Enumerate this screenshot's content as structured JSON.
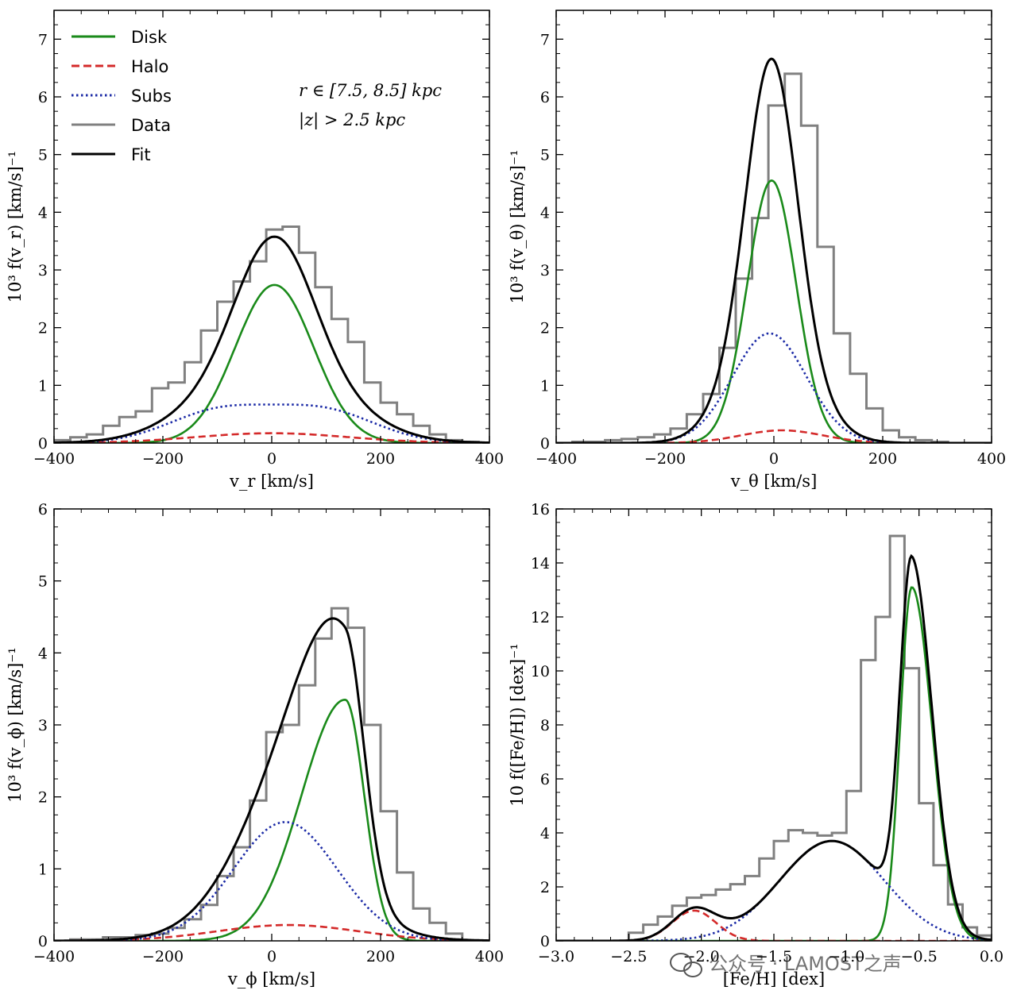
{
  "colors": {
    "disk": "#1a8a1a",
    "halo": "#d42a2a",
    "subs": "#1b2aa6",
    "data": "#808080",
    "fit": "#000000"
  },
  "legend": {
    "disk": "Disk",
    "halo": "Halo",
    "subs": "Subs",
    "data": "Data",
    "fit": "Fit"
  },
  "annotation": {
    "line1": "r ∈ [7.5, 8.5] kpc",
    "line2": "|z| > 2.5 kpc"
  },
  "watermark": "公众号 · LAMOST之声",
  "chart_data": [
    {
      "type": "line",
      "xlabel": "v_r [km/s]",
      "ylabel": "10³ f(v_r) [km/s]⁻¹",
      "xlim": [
        -400,
        400
      ],
      "ylim": [
        0,
        7.5
      ],
      "xticks": [
        -400,
        -200,
        0,
        200,
        400
      ],
      "xtick_labels": [
        "−400",
        "−200",
        "0",
        "200",
        "400"
      ],
      "yticks": [
        0,
        1,
        2,
        3,
        4,
        5,
        6,
        7
      ],
      "ytick_labels": [
        "0",
        "1",
        "2",
        "3",
        "4",
        "5",
        "6",
        "7"
      ],
      "legend_position": "top-left",
      "data_hist": {
        "edges": [
          -400,
          -370,
          -340,
          -310,
          -280,
          -250,
          -220,
          -190,
          -160,
          -130,
          -100,
          -70,
          -40,
          -10,
          20,
          50,
          80,
          110,
          140,
          170,
          200,
          230,
          260,
          290,
          320,
          350,
          380,
          400
        ],
        "values": [
          0.05,
          0.1,
          0.15,
          0.3,
          0.45,
          0.55,
          0.95,
          1.05,
          1.4,
          1.95,
          2.45,
          2.8,
          3.15,
          3.7,
          3.75,
          3.3,
          2.7,
          2.15,
          1.75,
          1.05,
          0.7,
          0.5,
          0.3,
          0.15,
          0.05,
          0.02,
          0.0
        ]
      },
      "components": [
        {
          "key": "disk",
          "form": "gauss",
          "params": [
            [
              2.74,
              5,
              72
            ]
          ]
        },
        {
          "key": "halo",
          "form": "gauss",
          "params": [
            [
              0.17,
              0,
              140
            ]
          ]
        },
        {
          "key": "subs",
          "form": "gauss",
          "params": [
            [
              0.55,
              -95,
              95
            ],
            [
              0.55,
              95,
              95
            ]
          ]
        }
      ]
    },
    {
      "type": "line",
      "xlabel": "v_θ [km/s]",
      "ylabel": "10³ f(v_θ) [km/s]⁻¹",
      "xlim": [
        -400,
        400
      ],
      "ylim": [
        0,
        7.5
      ],
      "xticks": [
        -400,
        -200,
        0,
        200,
        400
      ],
      "xtick_labels": [
        "−400",
        "−200",
        "0",
        "200",
        "400"
      ],
      "yticks": [
        0,
        1,
        2,
        3,
        4,
        5,
        6,
        7
      ],
      "ytick_labels": [
        "0",
        "1",
        "2",
        "3",
        "4",
        "5",
        "6",
        "7"
      ],
      "data_hist": {
        "edges": [
          -400,
          -370,
          -340,
          -310,
          -280,
          -250,
          -220,
          -190,
          -160,
          -130,
          -100,
          -70,
          -40,
          -10,
          20,
          50,
          80,
          110,
          140,
          170,
          200,
          230,
          260,
          290,
          320,
          350,
          380,
          400
        ],
        "values": [
          0.0,
          0.02,
          0.02,
          0.05,
          0.07,
          0.1,
          0.15,
          0.25,
          0.5,
          0.85,
          1.65,
          2.85,
          3.9,
          5.85,
          6.4,
          5.5,
          3.4,
          1.9,
          1.2,
          0.6,
          0.22,
          0.1,
          0.05,
          0.02,
          0.0,
          0.0,
          0.0
        ]
      },
      "components": [
        {
          "key": "disk",
          "form": "gauss",
          "params": [
            [
              4.55,
              -4,
              45
            ]
          ]
        },
        {
          "key": "halo",
          "form": "gauss",
          "params": [
            [
              0.22,
              15,
              75
            ]
          ]
        },
        {
          "key": "subs",
          "form": "gauss",
          "params": [
            [
              1.9,
              -8,
              68
            ]
          ]
        }
      ]
    },
    {
      "type": "line",
      "xlabel": "v_ϕ [km/s]",
      "ylabel": "10³ f(v_ϕ) [km/s]⁻¹",
      "xlim": [
        -400,
        400
      ],
      "ylim": [
        0,
        6
      ],
      "xticks": [
        -400,
        -200,
        0,
        200,
        400
      ],
      "xtick_labels": [
        "−400",
        "−200",
        "0",
        "200",
        "400"
      ],
      "yticks": [
        0,
        1,
        2,
        3,
        4,
        5,
        6
      ],
      "ytick_labels": [
        "0",
        "1",
        "2",
        "3",
        "4",
        "5",
        "6"
      ],
      "data_hist": {
        "edges": [
          -400,
          -370,
          -340,
          -310,
          -280,
          -250,
          -220,
          -190,
          -160,
          -130,
          -100,
          -70,
          -40,
          -10,
          20,
          50,
          80,
          110,
          140,
          170,
          200,
          230,
          260,
          290,
          320,
          350,
          380,
          400
        ],
        "values": [
          0.0,
          0.02,
          0.02,
          0.05,
          0.05,
          0.08,
          0.1,
          0.18,
          0.3,
          0.5,
          0.9,
          1.3,
          1.95,
          2.9,
          3.0,
          3.55,
          4.2,
          4.62,
          4.35,
          3.0,
          1.8,
          0.95,
          0.45,
          0.25,
          0.1,
          0.0,
          0.0
        ]
      },
      "components": [
        {
          "key": "disk",
          "form": "skew",
          "params": [
            [
              3.35,
              135,
              80,
              35
            ]
          ]
        },
        {
          "key": "halo",
          "form": "gauss",
          "params": [
            [
              0.22,
              30,
              130
            ]
          ]
        },
        {
          "key": "subs",
          "form": "gauss",
          "params": [
            [
              1.65,
              25,
              95
            ]
          ]
        }
      ]
    },
    {
      "type": "line",
      "xlabel": "[Fe/H] [dex]",
      "ylabel": "10 f([Fe/H]) [dex]⁻¹",
      "xlim": [
        -3.0,
        0.0
      ],
      "ylim": [
        0,
        16
      ],
      "xticks": [
        -3.0,
        -2.5,
        -2.0,
        -1.5,
        -1.0,
        -0.5,
        0.0
      ],
      "xtick_labels": [
        "−3.0",
        "−2.5",
        "−2.0",
        "−1.5",
        "−1.0",
        "−0.5",
        "0.0"
      ],
      "yticks": [
        0,
        2,
        4,
        6,
        8,
        10,
        12,
        14,
        16
      ],
      "ytick_labels": [
        "0",
        "2",
        "4",
        "6",
        "8",
        "10",
        "12",
        "14",
        "16"
      ],
      "data_hist": {
        "edges": [
          -2.5,
          -2.4,
          -2.3,
          -2.2,
          -2.1,
          -2.0,
          -1.9,
          -1.8,
          -1.7,
          -1.6,
          -1.5,
          -1.4,
          -1.3,
          -1.2,
          -1.1,
          -1.0,
          -0.9,
          -0.8,
          -0.7,
          -0.6,
          -0.5,
          -0.4,
          -0.3,
          -0.2,
          -0.1,
          0.0
        ],
        "values": [
          0.3,
          0.6,
          0.9,
          1.3,
          1.6,
          1.7,
          1.9,
          2.1,
          2.4,
          3.05,
          3.7,
          4.1,
          4.0,
          3.9,
          4.0,
          5.55,
          10.4,
          12.0,
          15.0,
          10.1,
          5.1,
          2.8,
          1.35,
          0.5,
          0.2
        ]
      },
      "components": [
        {
          "key": "disk",
          "form": "skew",
          "params": [
            [
              13.1,
              -0.55,
              0.08,
              0.14
            ]
          ]
        },
        {
          "key": "halo",
          "form": "gauss",
          "params": [
            [
              1.12,
              -2.05,
              0.15
            ]
          ]
        },
        {
          "key": "subs",
          "form": "gauss",
          "params": [
            [
              3.7,
              -1.1,
              0.36
            ]
          ]
        }
      ]
    }
  ]
}
